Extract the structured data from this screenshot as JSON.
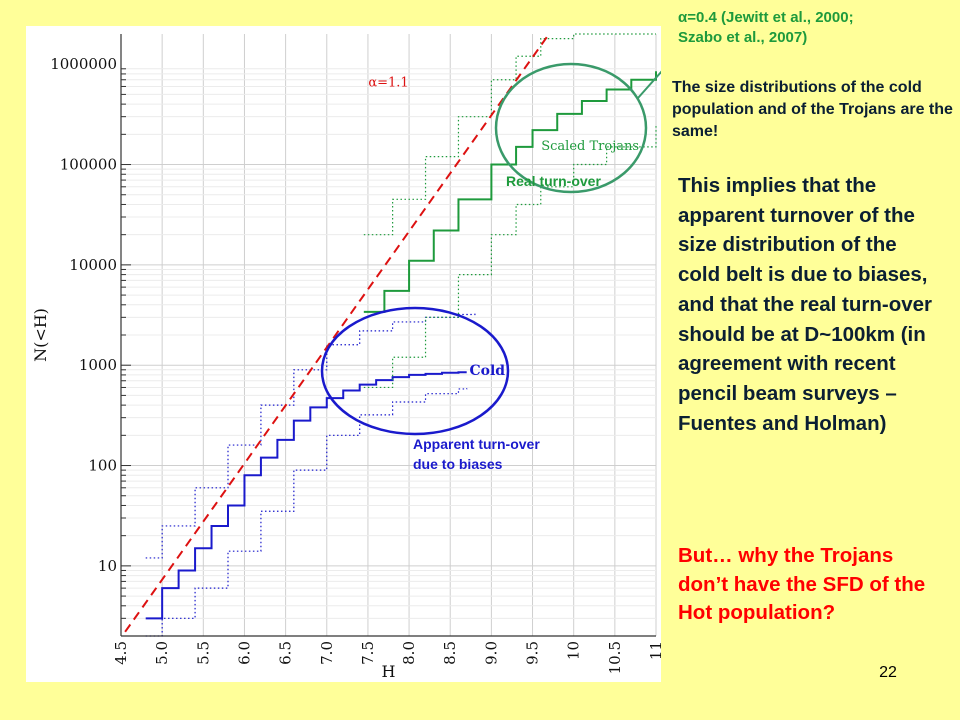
{
  "slide_number": "22",
  "annotations": {
    "alpha_note_line1": "=0.4 (Jewitt et al., 2000;",
    "alpha_note_line2": "Szabo et al., 2007)",
    "alpha_symbol": "α",
    "same_sfd": "The size distributions of the cold population and of the Trojans are the same!",
    "implies": "This implies that the apparent turnover of the size distribution of the cold belt is due to biases, and that the real turn-over should be at D~100km (in agreement with recent pencil beam surveys – Fuentes and Holman)",
    "question": "But… why the Trojans don’t have the SFD of the Hot population?",
    "real_turnover": "Real turn-over",
    "apparent_turnover_line1": "Apparent turn-over",
    "apparent_turnover_line2": "due to biases"
  },
  "colors": {
    "background": "#ffff99",
    "trojans": "#1e9a3c",
    "cold": "#1a1acc",
    "fit": "#dd1111",
    "highlight_green": "#3a9a6a",
    "highlight_blue": "#1a1acc",
    "annotation_dark": "#0b1f33",
    "annotation_red": "#ff0000"
  },
  "chart_data": {
    "type": "line",
    "xlabel": "H",
    "ylabel": "N(<H)",
    "xscale": "linear",
    "yscale": "log",
    "xlim": [
      4.5,
      11
    ],
    "ylim": [
      2,
      2000000
    ],
    "x_tick_labels": [
      "4.5",
      "5.0",
      "5.5",
      "6.0",
      "6.5",
      "7.0",
      "7.5",
      "8.0",
      "8.5",
      "9.0",
      "9.5",
      "10",
      "10.5",
      "11"
    ],
    "y_tick_labels": [
      "10",
      "100",
      "1000",
      "10000",
      "100000",
      "1000000"
    ],
    "grid": true,
    "series": [
      {
        "name": "Cold",
        "style": "solid-step",
        "x": [
          4.8,
          5.0,
          5.2,
          5.4,
          5.6,
          5.8,
          6.0,
          6.2,
          6.4,
          6.6,
          6.8,
          7.0,
          7.2,
          7.4,
          7.6,
          7.8,
          8.0,
          8.2,
          8.4,
          8.6,
          8.7
        ],
        "y": [
          3,
          6,
          9,
          15,
          25,
          40,
          80,
          120,
          180,
          280,
          380,
          470,
          560,
          640,
          710,
          760,
          800,
          820,
          840,
          850,
          850
        ]
      },
      {
        "name": "",
        "style": "dotted-step",
        "x": [
          4.8,
          5.0,
          5.4,
          5.8,
          6.2,
          6.6,
          7.0,
          7.4,
          7.8,
          8.2,
          8.6,
          8.8
        ],
        "y": [
          12,
          25,
          60,
          160,
          400,
          900,
          1600,
          2200,
          2700,
          3000,
          3200,
          3300
        ]
      },
      {
        "name": "",
        "style": "dotted-step",
        "x": [
          4.8,
          5.0,
          5.4,
          5.8,
          6.2,
          6.6,
          7.0,
          7.4,
          7.8,
          8.2,
          8.6,
          8.7
        ],
        "y": [
          2,
          3,
          6,
          14,
          35,
          90,
          200,
          320,
          430,
          520,
          580,
          590
        ]
      },
      {
        "name": "Scaled Trojans",
        "style": "solid-step",
        "x": [
          7.45,
          7.7,
          8.0,
          8.3,
          8.6,
          9.0,
          9.3,
          9.5,
          9.8,
          10.1,
          10.4,
          10.7,
          11.0
        ],
        "y": [
          3400,
          5500,
          11000,
          22000,
          45000,
          100000,
          150000,
          220000,
          320000,
          430000,
          560000,
          700000,
          850000
        ]
      },
      {
        "name": "",
        "style": "dotted-step",
        "x": [
          7.45,
          7.8,
          8.2,
          8.6,
          9.0,
          9.3,
          9.6,
          10.0,
          10.4,
          11.0
        ],
        "y": [
          20000,
          45000,
          120000,
          300000,
          700000,
          1200000,
          1800000,
          2000000,
          2000000,
          2000000
        ]
      },
      {
        "name": "",
        "style": "dotted-step",
        "x": [
          7.45,
          7.8,
          8.2,
          8.6,
          9.0,
          9.3,
          9.6,
          10.0,
          10.4,
          11.0
        ],
        "y": [
          600,
          1200,
          3000,
          8000,
          20000,
          40000,
          60000,
          100000,
          150000,
          250000
        ]
      },
      {
        "name": "α=1.1",
        "style": "dashed-fit",
        "x": [
          4.55,
          9.7
        ],
        "y": [
          2.2,
          2000000
        ]
      }
    ],
    "annotations": [
      {
        "text": "α=1.1",
        "x": 7.75,
        "y": 600000
      },
      {
        "text": "Scaled Trojans",
        "x": 10.2,
        "y": 140000
      },
      {
        "text": "Cold",
        "x": 8.95,
        "y": 800
      }
    ]
  }
}
